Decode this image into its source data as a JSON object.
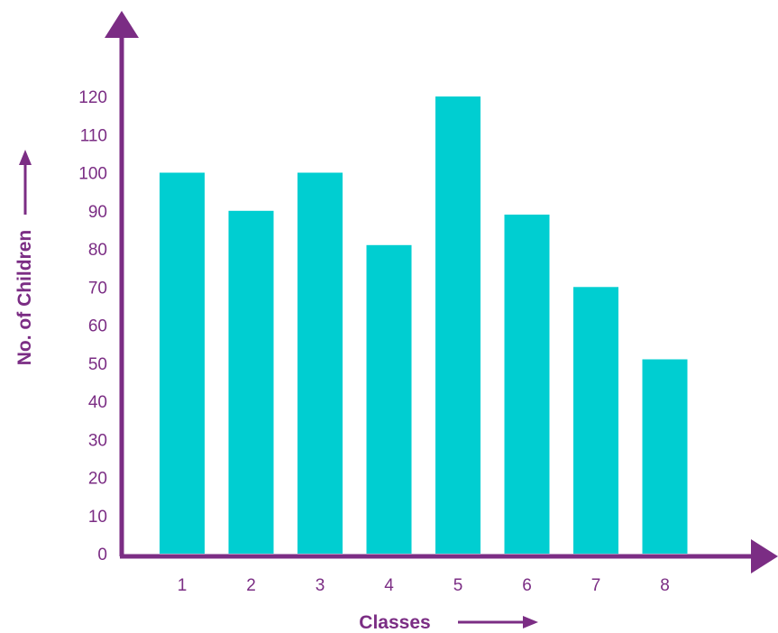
{
  "colors": {
    "axis": "#7b2d84",
    "bar": "#00ced1",
    "text": "#7b2d84"
  },
  "chart_data": {
    "type": "bar",
    "title": "",
    "xlabel": "Classes",
    "ylabel": "No. of Children",
    "categories": [
      "1",
      "2",
      "3",
      "4",
      "5",
      "6",
      "7",
      "8"
    ],
    "values": [
      100,
      90,
      100,
      81,
      120,
      89,
      70,
      51
    ],
    "ylim": [
      0,
      120
    ],
    "yticks": [
      0,
      10,
      20,
      30,
      40,
      50,
      60,
      70,
      80,
      90,
      100,
      110,
      120
    ],
    "ytick_labels": [
      "0",
      "10",
      "20",
      "30",
      "40",
      "50",
      "60",
      "70",
      "80",
      "90",
      "100",
      "110",
      "120"
    ],
    "grid": false,
    "legend": "none"
  }
}
